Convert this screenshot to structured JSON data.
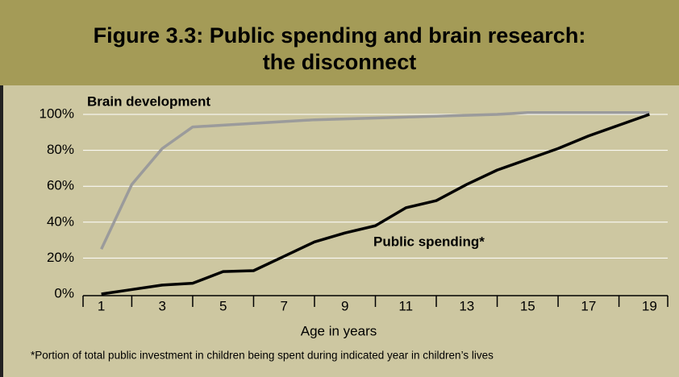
{
  "chart_data": {
    "type": "line",
    "title": "Figure 3.3: Public spending and brain research:",
    "title_line2": "the disconnect",
    "x_label": "Age in years",
    "footnote": "*Portion of total public investment in children being spent during indicated year in children’s lives",
    "x": [
      1,
      2,
      3,
      4,
      5,
      6,
      7,
      8,
      9,
      10,
      11,
      12,
      13,
      14,
      15,
      16,
      17,
      18,
      19
    ],
    "series": [
      {
        "name": "Brain development",
        "color": "#9b9b9b",
        "values": [
          25,
          61,
          81,
          93,
          94,
          95,
          96,
          97,
          97.5,
          98,
          98.5,
          99,
          99.5,
          100,
          101,
          101,
          101,
          101,
          101
        ]
      },
      {
        "name": "Public spending*",
        "color": "#000000",
        "values": [
          0,
          2.5,
          5,
          6,
          12.5,
          13,
          21,
          29,
          34,
          38,
          48,
          52,
          61,
          69,
          75,
          81,
          88,
          94,
          100
        ]
      }
    ],
    "xlim": [
      0.4,
      19.6
    ],
    "xticks": [
      1,
      3,
      5,
      7,
      9,
      11,
      13,
      15,
      17,
      19
    ],
    "ylim": [
      0,
      100
    ],
    "yticks": [
      {
        "value": 0,
        "label": "0%"
      },
      {
        "value": 20,
        "label": "20%"
      },
      {
        "value": 40,
        "label": "40%"
      },
      {
        "value": 60,
        "label": "60%"
      },
      {
        "value": 80,
        "label": "80%"
      },
      {
        "value": 100,
        "label": "100%"
      }
    ],
    "grid": true
  }
}
